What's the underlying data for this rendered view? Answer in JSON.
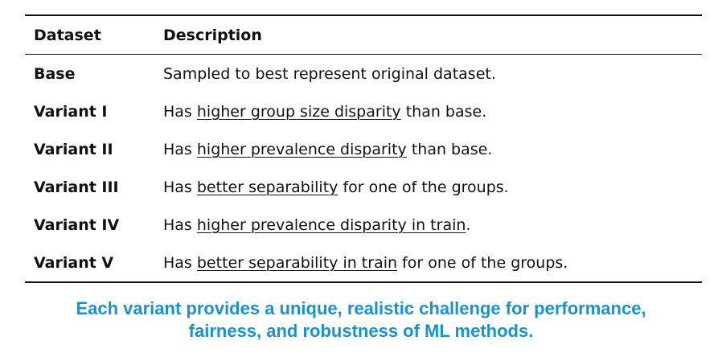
{
  "table": {
    "headers": {
      "dataset": "Dataset",
      "description": "Description"
    },
    "rows": [
      {
        "dataset": "Base",
        "pre": "Sampled to best represent original dataset.",
        "link": "",
        "post": ""
      },
      {
        "dataset": "Variant I",
        "pre": "Has ",
        "link": "higher group size disparity",
        "post": " than base."
      },
      {
        "dataset": "Variant II",
        "pre": "Has ",
        "link": "higher prevalence disparity",
        "post": " than base."
      },
      {
        "dataset": "Variant III",
        "pre": "Has ",
        "link": "better separability",
        "post": " for one of the groups."
      },
      {
        "dataset": "Variant IV",
        "pre": "Has ",
        "link": "higher prevalence disparity in train",
        "post": "."
      },
      {
        "dataset": "Variant V",
        "pre": "Has ",
        "link": "better separability in train",
        "post": " for one of the groups."
      }
    ]
  },
  "caption": {
    "line1": "Each variant provides a unique, realistic challenge for performance,",
    "line2": "fairness, and robustness of ML methods."
  },
  "colors": {
    "caption": "#1a92cf",
    "text": "#111111"
  }
}
